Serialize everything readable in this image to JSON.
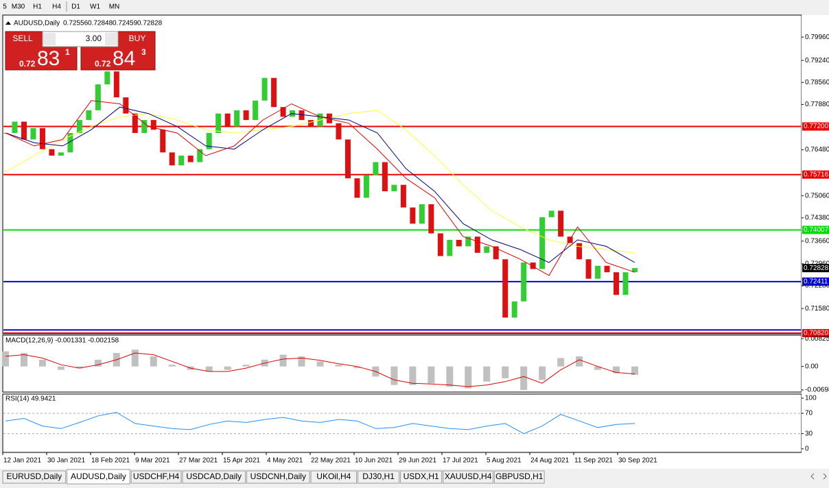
{
  "toolbar": {
    "periods": [
      "5",
      "M30",
      "H1",
      "H4",
      "D1",
      "W1",
      "MN"
    ]
  },
  "trade_panel": {
    "sell": "SELL",
    "buy": "BUY",
    "volume": "3.00",
    "sell_price": {
      "prefix": "0.72",
      "big": "83",
      "small": "1"
    },
    "buy_price": {
      "prefix": "0.72",
      "big": "84",
      "small": "3"
    }
  },
  "chart_data": {
    "type": "candlestick",
    "title": "AUDUSD,Daily",
    "ohlc": [
      0.72556,
      0.72848,
      0.72459,
      0.72828
    ],
    "colors": {
      "up": "#32cd32",
      "down": "#dd1111"
    },
    "ylim": [
      0.708,
      0.8064
    ],
    "yticks": [
      {
        "value": 0.7996,
        "label": "0.79960"
      },
      {
        "value": 0.7924,
        "label": "0.79240"
      },
      {
        "value": 0.7856,
        "label": "0.78560"
      },
      {
        "value": 0.7788,
        "label": "0.77880"
      },
      {
        "value": 0.7648,
        "label": "0.76480"
      },
      {
        "value": 0.7506,
        "label": "0.75060"
      },
      {
        "value": 0.7438,
        "label": "0.74380"
      },
      {
        "value": 0.7366,
        "label": "0.73660"
      },
      {
        "value": 0.7296,
        "label": "0.72960"
      },
      {
        "value": 0.7228,
        "label": "0.72280"
      },
      {
        "value": 0.7158,
        "label": "0.71580"
      }
    ],
    "closes": [
      0.77,
      0.7735,
      0.768,
      0.7715,
      0.765,
      0.763,
      0.764,
      0.77,
      0.774,
      0.777,
      0.785,
      0.789,
      0.781,
      0.776,
      0.77,
      0.774,
      0.771,
      0.764,
      0.76,
      0.763,
      0.761,
      0.765,
      0.77,
      0.776,
      0.772,
      0.777,
      0.774,
      0.78,
      0.787,
      0.778,
      0.775,
      0.777,
      0.774,
      0.772,
      0.776,
      0.773,
      0.768,
      0.756,
      0.75,
      0.757,
      0.761,
      0.752,
      0.754,
      0.747,
      0.742,
      0.748,
      0.739,
      0.732,
      0.737,
      0.735,
      0.738,
      0.733,
      0.735,
      0.731,
      0.713,
      0.718,
      0.73,
      0.728,
      0.744,
      0.746,
      0.738,
      0.736,
      0.731,
      0.725,
      0.729,
      0.727,
      0.72,
      0.727,
      0.7283
    ],
    "moving_averages": [
      {
        "color": "#ffff33",
        "values": [
          0.758,
          0.763,
          0.768,
          0.772,
          0.775,
          0.776,
          0.774,
          0.771,
          0.77,
          0.771,
          0.772,
          0.774,
          0.776,
          0.777,
          0.771,
          0.763,
          0.754,
          0.746,
          0.741,
          0.737,
          0.735,
          0.734,
          0.733
        ]
      },
      {
        "color": "#000080",
        "values": [
          0.77,
          0.767,
          0.766,
          0.771,
          0.778,
          0.776,
          0.772,
          0.766,
          0.765,
          0.771,
          0.776,
          0.775,
          0.774,
          0.77,
          0.759,
          0.752,
          0.742,
          0.737,
          0.734,
          0.73,
          0.737,
          0.735,
          0.73
        ]
      },
      {
        "color": "#dd0000",
        "values": [
          0.77,
          0.766,
          0.768,
          0.78,
          0.779,
          0.772,
          0.77,
          0.763,
          0.766,
          0.774,
          0.779,
          0.775,
          0.773,
          0.765,
          0.756,
          0.75,
          0.738,
          0.735,
          0.731,
          0.726,
          0.741,
          0.73,
          0.727
        ]
      }
    ],
    "levels": [
      {
        "value": 0.772,
        "label": "0.77200",
        "color": "#ee0000"
      },
      {
        "value": 0.75716,
        "label": "0.75716",
        "color": "#ee0000"
      },
      {
        "value": 0.74007,
        "label": "0.74007",
        "color": "#00dd00"
      },
      {
        "value": 0.72411,
        "label": "0.72411",
        "color": "#0000cc"
      },
      {
        "value": 0.7092,
        "color": "#0000cc"
      },
      {
        "value": 0.7082,
        "label": "0.70820",
        "color": "#ee0000"
      }
    ],
    "last_price": {
      "value": 0.72828,
      "label": "0.72828"
    },
    "x_labels": [
      "12 Jan 2021",
      "30 Jan 2021",
      "18 Feb 2021",
      "9 Mar 2021",
      "27 Mar 2021",
      "15 Apr 2021",
      "4 May 2021",
      "22 May 2021",
      "10 Jun 2021",
      "29 Jun 2021",
      "17 Jul 2021",
      "5 Aug 2021",
      "24 Aug 2021",
      "11 Sep 2021",
      "30 Sep 2021"
    ],
    "macd": {
      "label": "MACD(12,26,9) -0.001331 -0.002158",
      "ylim": [
        -0.0076,
        0.0093
      ],
      "yticks": [
        0.008253,
        {
          "value": 0,
          "label": "0.00"
        },
        {
          "value": -0.006982,
          "label": "-0.00698"
        }
      ],
      "histogram": [
        0.0045,
        0.004,
        0.002,
        -0.001,
        -0.0005,
        0.002,
        0.004,
        0.005,
        0.003,
        0.0005,
        -0.001,
        -0.0015,
        -0.001,
        0.0005,
        0.002,
        0.0035,
        0.003,
        0.0015,
        0.0005,
        -0.0005,
        -0.003,
        -0.0055,
        -0.0055,
        -0.005,
        -0.006,
        -0.0065,
        -0.0045,
        -0.0035,
        -0.007,
        -0.004,
        0.0025,
        0.003,
        -0.001,
        -0.002,
        -0.0025
      ],
      "signal": [
        0.003,
        0.0035,
        0.0025,
        0.0005,
        -0.0005,
        0.0005,
        0.002,
        0.004,
        0.0035,
        0.0015,
        -0.0005,
        -0.0015,
        -0.0015,
        -0.0005,
        0.001,
        0.0022,
        0.0025,
        0.0018,
        0.0008,
        0,
        -0.0015,
        -0.004,
        -0.005,
        -0.0052,
        -0.0055,
        -0.006,
        -0.0055,
        -0.0045,
        -0.003,
        -0.005,
        -0.001,
        0.002,
        0,
        -0.0018,
        -0.0022
      ]
    },
    "rsi": {
      "label": "RSI(14) 49.9421",
      "ylim": [
        -7,
        108
      ],
      "yticks": [
        100,
        70,
        30,
        0
      ],
      "levels": [
        70,
        30
      ],
      "values": [
        55,
        60,
        45,
        40,
        52,
        65,
        72,
        50,
        45,
        40,
        38,
        48,
        55,
        52,
        58,
        62,
        55,
        52,
        58,
        55,
        40,
        42,
        50,
        45,
        40,
        38,
        45,
        50,
        30,
        45,
        68,
        55,
        42,
        48,
        50
      ]
    }
  },
  "tabs": [
    "EURUSD,Daily",
    "AUDUSD,Daily",
    "USDCHF,H4",
    "USDCAD,Daily",
    "USDCNH,Daily",
    "UKOil,H4",
    "DJ30,H1",
    "USDX,H1",
    "XAUUSD,H4",
    "GBPUSD,H1"
  ],
  "active_tab": 1
}
